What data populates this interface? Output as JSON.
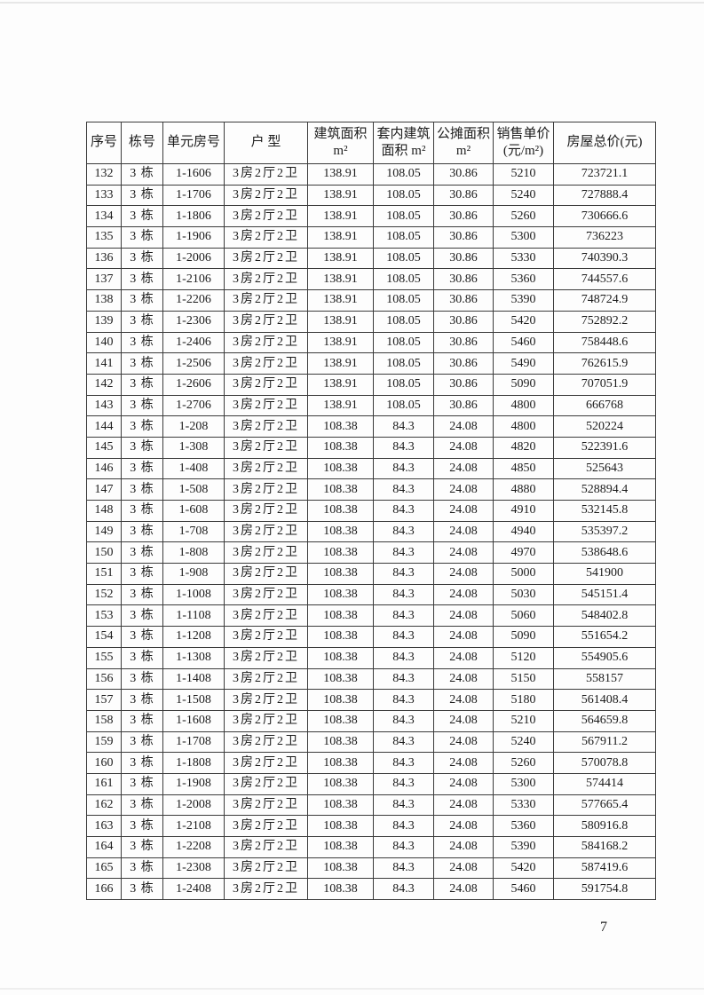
{
  "document": {
    "page_number": "7",
    "text_color": "#1c1c1c",
    "border_color": "#3b3b3b",
    "background_color": "#fdfdfd"
  },
  "table": {
    "headers": [
      {
        "key": "seq",
        "lines": [
          "序号"
        ]
      },
      {
        "key": "building",
        "lines": [
          "栋号"
        ]
      },
      {
        "key": "unit",
        "lines": [
          "单元房号"
        ]
      },
      {
        "key": "type",
        "lines": [
          "户 型"
        ]
      },
      {
        "key": "gross_area",
        "lines": [
          "建筑面积",
          "m²"
        ]
      },
      {
        "key": "inner_area",
        "lines": [
          "套内建筑",
          "面积 m²"
        ]
      },
      {
        "key": "shared_area",
        "lines": [
          "公摊面积",
          "m²"
        ]
      },
      {
        "key": "unit_price",
        "lines": [
          "销售单价",
          "(元/m²)"
        ]
      },
      {
        "key": "total_price",
        "lines": [
          "房屋总价(元)"
        ]
      }
    ],
    "rows": [
      [
        "132",
        "3 栋",
        "1-1606",
        "3房2厅2卫",
        "138.91",
        "108.05",
        "30.86",
        "5210",
        "723721.1"
      ],
      [
        "133",
        "3 栋",
        "1-1706",
        "3房2厅2卫",
        "138.91",
        "108.05",
        "30.86",
        "5240",
        "727888.4"
      ],
      [
        "134",
        "3 栋",
        "1-1806",
        "3房2厅2卫",
        "138.91",
        "108.05",
        "30.86",
        "5260",
        "730666.6"
      ],
      [
        "135",
        "3 栋",
        "1-1906",
        "3房2厅2卫",
        "138.91",
        "108.05",
        "30.86",
        "5300",
        "736223"
      ],
      [
        "136",
        "3 栋",
        "1-2006",
        "3房2厅2卫",
        "138.91",
        "108.05",
        "30.86",
        "5330",
        "740390.3"
      ],
      [
        "137",
        "3 栋",
        "1-2106",
        "3房2厅2卫",
        "138.91",
        "108.05",
        "30.86",
        "5360",
        "744557.6"
      ],
      [
        "138",
        "3 栋",
        "1-2206",
        "3房2厅2卫",
        "138.91",
        "108.05",
        "30.86",
        "5390",
        "748724.9"
      ],
      [
        "139",
        "3 栋",
        "1-2306",
        "3房2厅2卫",
        "138.91",
        "108.05",
        "30.86",
        "5420",
        "752892.2"
      ],
      [
        "140",
        "3 栋",
        "1-2406",
        "3房2厅2卫",
        "138.91",
        "108.05",
        "30.86",
        "5460",
        "758448.6"
      ],
      [
        "141",
        "3 栋",
        "1-2506",
        "3房2厅2卫",
        "138.91",
        "108.05",
        "30.86",
        "5490",
        "762615.9"
      ],
      [
        "142",
        "3 栋",
        "1-2606",
        "3房2厅2卫",
        "138.91",
        "108.05",
        "30.86",
        "5090",
        "707051.9"
      ],
      [
        "143",
        "3 栋",
        "1-2706",
        "3房2厅2卫",
        "138.91",
        "108.05",
        "30.86",
        "4800",
        "666768"
      ],
      [
        "144",
        "3 栋",
        "1-208",
        "3房2厅2卫",
        "108.38",
        "84.3",
        "24.08",
        "4800",
        "520224"
      ],
      [
        "145",
        "3 栋",
        "1-308",
        "3房2厅2卫",
        "108.38",
        "84.3",
        "24.08",
        "4820",
        "522391.6"
      ],
      [
        "146",
        "3 栋",
        "1-408",
        "3房2厅2卫",
        "108.38",
        "84.3",
        "24.08",
        "4850",
        "525643"
      ],
      [
        "147",
        "3 栋",
        "1-508",
        "3房2厅2卫",
        "108.38",
        "84.3",
        "24.08",
        "4880",
        "528894.4"
      ],
      [
        "148",
        "3 栋",
        "1-608",
        "3房2厅2卫",
        "108.38",
        "84.3",
        "24.08",
        "4910",
        "532145.8"
      ],
      [
        "149",
        "3 栋",
        "1-708",
        "3房2厅2卫",
        "108.38",
        "84.3",
        "24.08",
        "4940",
        "535397.2"
      ],
      [
        "150",
        "3 栋",
        "1-808",
        "3房2厅2卫",
        "108.38",
        "84.3",
        "24.08",
        "4970",
        "538648.6"
      ],
      [
        "151",
        "3 栋",
        "1-908",
        "3房2厅2卫",
        "108.38",
        "84.3",
        "24.08",
        "5000",
        "541900"
      ],
      [
        "152",
        "3 栋",
        "1-1008",
        "3房2厅2卫",
        "108.38",
        "84.3",
        "24.08",
        "5030",
        "545151.4"
      ],
      [
        "153",
        "3 栋",
        "1-1108",
        "3房2厅2卫",
        "108.38",
        "84.3",
        "24.08",
        "5060",
        "548402.8"
      ],
      [
        "154",
        "3 栋",
        "1-1208",
        "3房2厅2卫",
        "108.38",
        "84.3",
        "24.08",
        "5090",
        "551654.2"
      ],
      [
        "155",
        "3 栋",
        "1-1308",
        "3房2厅2卫",
        "108.38",
        "84.3",
        "24.08",
        "5120",
        "554905.6"
      ],
      [
        "156",
        "3 栋",
        "1-1408",
        "3房2厅2卫",
        "108.38",
        "84.3",
        "24.08",
        "5150",
        "558157"
      ],
      [
        "157",
        "3 栋",
        "1-1508",
        "3房2厅2卫",
        "108.38",
        "84.3",
        "24.08",
        "5180",
        "561408.4"
      ],
      [
        "158",
        "3 栋",
        "1-1608",
        "3房2厅2卫",
        "108.38",
        "84.3",
        "24.08",
        "5210",
        "564659.8"
      ],
      [
        "159",
        "3 栋",
        "1-1708",
        "3房2厅2卫",
        "108.38",
        "84.3",
        "24.08",
        "5240",
        "567911.2"
      ],
      [
        "160",
        "3 栋",
        "1-1808",
        "3房2厅2卫",
        "108.38",
        "84.3",
        "24.08",
        "5260",
        "570078.8"
      ],
      [
        "161",
        "3 栋",
        "1-1908",
        "3房2厅2卫",
        "108.38",
        "84.3",
        "24.08",
        "5300",
        "574414"
      ],
      [
        "162",
        "3 栋",
        "1-2008",
        "3房2厅2卫",
        "108.38",
        "84.3",
        "24.08",
        "5330",
        "577665.4"
      ],
      [
        "163",
        "3 栋",
        "1-2108",
        "3房2厅2卫",
        "108.38",
        "84.3",
        "24.08",
        "5360",
        "580916.8"
      ],
      [
        "164",
        "3 栋",
        "1-2208",
        "3房2厅2卫",
        "108.38",
        "84.3",
        "24.08",
        "5390",
        "584168.2"
      ],
      [
        "165",
        "3 栋",
        "1-2308",
        "3房2厅2卫",
        "108.38",
        "84.3",
        "24.08",
        "5420",
        "587419.6"
      ],
      [
        "166",
        "3 栋",
        "1-2408",
        "3房2厅2卫",
        "108.38",
        "84.3",
        "24.08",
        "5460",
        "591754.8"
      ]
    ]
  }
}
